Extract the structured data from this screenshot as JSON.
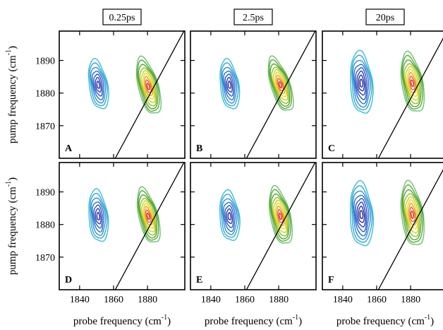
{
  "chart_data": {
    "type": "contour",
    "column_titles": [
      "0.25ps",
      "2.5ps",
      "20ps"
    ],
    "xlabel": "probe frequency (cm⁻¹)",
    "ylabel": "pump frequency (cm⁻¹)",
    "xlim": [
      1828,
      1902
    ],
    "ylim": [
      1860,
      1899
    ],
    "xticks": [
      1840,
      1860,
      1880
    ],
    "yticks": [
      1870,
      1880,
      1890
    ],
    "diagonal": true,
    "contour_colors": [
      "#2a2a9e",
      "#2a56c8",
      "#2a8fd8",
      "#3cbcd0",
      "#54c8a8",
      "#6cc070",
      "#55aa35",
      "#8cc020",
      "#d8d81a",
      "#f0a020",
      "#e82020"
    ],
    "panels": [
      {
        "label": "A",
        "row": 0,
        "col": 0,
        "peaks": [
          {
            "x": 1851,
            "y": 1882.5,
            "sx": 3.5,
            "sy": 5.0,
            "rot": -10,
            "levels": 7,
            "palette": "cool"
          },
          {
            "x": 1880.5,
            "y": 1882.0,
            "sx": 3.8,
            "sy": 5.8,
            "rot": -15,
            "levels": 9,
            "palette": "warm"
          }
        ]
      },
      {
        "label": "B",
        "row": 0,
        "col": 1,
        "peaks": [
          {
            "x": 1851,
            "y": 1882.5,
            "sx": 3.5,
            "sy": 5.0,
            "rot": -8,
            "levels": 7,
            "palette": "cool"
          },
          {
            "x": 1881.0,
            "y": 1882.5,
            "sx": 3.6,
            "sy": 5.6,
            "rot": -18,
            "levels": 9,
            "palette": "warm"
          }
        ]
      },
      {
        "label": "C",
        "row": 0,
        "col": 2,
        "peaks": [
          {
            "x": 1851,
            "y": 1883.0,
            "sx": 4.2,
            "sy": 6.2,
            "rot": -5,
            "levels": 8,
            "palette": "cool"
          },
          {
            "x": 1881.0,
            "y": 1883.0,
            "sx": 4.0,
            "sy": 6.0,
            "rot": -10,
            "levels": 9,
            "palette": "warm"
          }
        ]
      },
      {
        "label": "D",
        "row": 1,
        "col": 0,
        "peaks": [
          {
            "x": 1851,
            "y": 1882.5,
            "sx": 3.6,
            "sy": 5.2,
            "rot": -6,
            "levels": 7,
            "palette": "cool"
          },
          {
            "x": 1880.5,
            "y": 1882.5,
            "sx": 3.6,
            "sy": 5.6,
            "rot": -14,
            "levels": 9,
            "palette": "warm"
          }
        ]
      },
      {
        "label": "E",
        "row": 1,
        "col": 1,
        "peaks": [
          {
            "x": 1851,
            "y": 1882.5,
            "sx": 3.7,
            "sy": 5.0,
            "rot": -6,
            "levels": 7,
            "palette": "cool"
          },
          {
            "x": 1881.0,
            "y": 1882.5,
            "sx": 3.8,
            "sy": 5.8,
            "rot": -12,
            "levels": 9,
            "palette": "warm"
          }
        ]
      },
      {
        "label": "F",
        "row": 1,
        "col": 2,
        "peaks": [
          {
            "x": 1851,
            "y": 1883.0,
            "sx": 4.3,
            "sy": 6.4,
            "rot": -4,
            "levels": 8,
            "palette": "cool"
          },
          {
            "x": 1881.0,
            "y": 1883.0,
            "sx": 4.1,
            "sy": 6.4,
            "rot": -8,
            "levels": 9,
            "palette": "warm"
          }
        ]
      }
    ]
  }
}
